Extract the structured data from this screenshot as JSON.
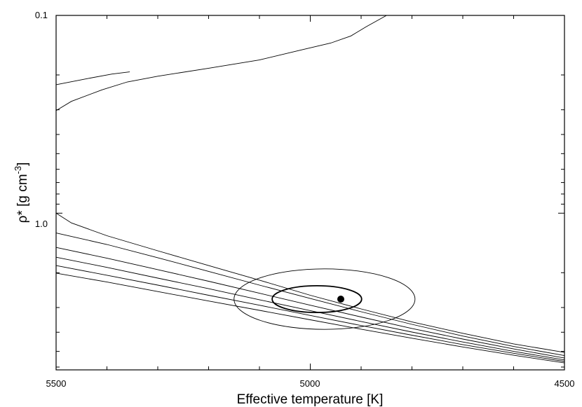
{
  "chart_data": {
    "type": "line",
    "title": "",
    "xlabel": "Effective temperature [K]",
    "ylabel": "ρ* [g cm",
    "ylabel_superscript": "-3",
    "ylabel_suffix": "]",
    "x_reversed": true,
    "y_log": true,
    "y_inverted": true,
    "xlim": [
      5500,
      4500
    ],
    "ylim": [
      0.1,
      6.2
    ],
    "x_ticks": [
      5500,
      5000,
      4500
    ],
    "x_tick_labels": [
      "5500",
      "5000",
      "4500"
    ],
    "y_ticks": [
      0.1,
      1.0
    ],
    "y_tick_labels": [
      "0.1",
      "1.0"
    ],
    "grid": false,
    "series": [
      {
        "x": [
          5500,
          5470,
          5410,
          5360,
          5300,
          5200,
          5100,
          5020,
          4960,
          4920,
          4890,
          4850
        ],
        "y": [
          0.303,
          0.272,
          0.238,
          0.217,
          0.203,
          0.185,
          0.168,
          0.15,
          0.138,
          0.127,
          0.114,
          0.1
        ]
      },
      {
        "x": [
          5500,
          5440,
          5390,
          5355
        ],
        "y": [
          0.224,
          0.209,
          0.198,
          0.193
        ]
      },
      {
        "x": [
          5500,
          5470,
          5400,
          5300,
          5200,
          5100,
          5000,
          4900,
          4800,
          4700,
          4600,
          4500
        ],
        "y": [
          1.0,
          1.12,
          1.3,
          1.55,
          1.84,
          2.18,
          2.6,
          3.05,
          3.55,
          4.05,
          4.58,
          5.06
        ]
      },
      {
        "x": [
          5500,
          5400,
          5300,
          5200,
          5100,
          5000,
          4900,
          4800,
          4700,
          4600,
          4500
        ],
        "y": [
          1.26,
          1.44,
          1.68,
          1.97,
          2.31,
          2.7,
          3.15,
          3.65,
          4.18,
          4.72,
          5.25
        ]
      },
      {
        "x": [
          5500,
          5400,
          5300,
          5200,
          5100,
          5000,
          4900,
          4800,
          4700,
          4600,
          4500
        ],
        "y": [
          1.49,
          1.69,
          1.93,
          2.21,
          2.54,
          2.92,
          3.35,
          3.83,
          4.33,
          4.86,
          5.4
        ]
      },
      {
        "x": [
          5500,
          5400,
          5300,
          5200,
          5100,
          5000,
          4900,
          4800,
          4700,
          4600,
          4500
        ],
        "y": [
          1.67,
          1.88,
          2.13,
          2.41,
          2.74,
          3.11,
          3.53,
          3.99,
          4.48,
          5.0,
          5.52
        ]
      },
      {
        "x": [
          5500,
          5400,
          5300,
          5200,
          5100,
          5000,
          4900,
          4800,
          4700,
          4600,
          4500
        ],
        "y": [
          1.84,
          2.06,
          2.31,
          2.6,
          2.92,
          3.29,
          3.7,
          4.14,
          4.62,
          5.11,
          5.62
        ]
      },
      {
        "x": [
          5500,
          5400,
          5300,
          5200,
          5100,
          5000,
          4900,
          4800,
          4700,
          4600,
          4500
        ],
        "y": [
          2.01,
          2.23,
          2.49,
          2.78,
          3.1,
          3.46,
          3.86,
          4.29,
          4.75,
          5.23,
          5.72
        ]
      }
    ],
    "point": {
      "x": 4940,
      "y": 2.72
    },
    "ellipses": [
      {
        "center_x": 4987,
        "center_y": 2.72,
        "half_width_x": 88,
        "half_height_y": 0.42
      },
      {
        "center_x": 4972,
        "center_y": 2.72,
        "half_width_x": 178,
        "half_height_y": 0.92
      }
    ]
  }
}
